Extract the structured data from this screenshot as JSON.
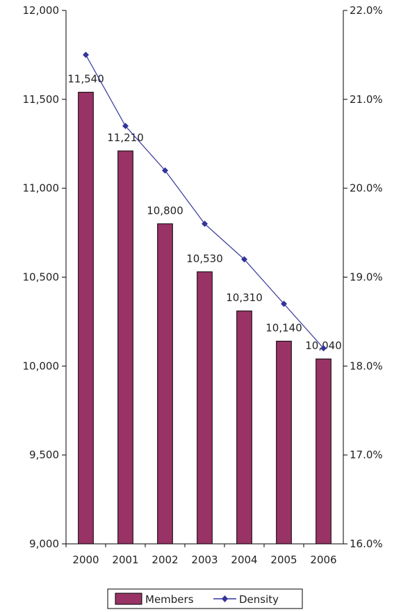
{
  "chart_data": {
    "type": "bar",
    "categories": [
      "2000",
      "2001",
      "2002",
      "2003",
      "2004",
      "2005",
      "2006"
    ],
    "series": [
      {
        "name": "Members",
        "type": "bar",
        "axis": "left",
        "color": "#993366",
        "values": [
          11540,
          11210,
          10800,
          10530,
          10310,
          10140,
          10040
        ],
        "labels": [
          "11,540",
          "11,210",
          "10,800",
          "10,530",
          "10,310",
          "10,140",
          "10,040"
        ]
      },
      {
        "name": "Density",
        "type": "line",
        "axis": "right",
        "color": "#333399",
        "marker": "diamond",
        "values": [
          21.5,
          20.7,
          20.2,
          19.6,
          19.2,
          18.7,
          18.2
        ]
      }
    ],
    "y_left": {
      "ylim": [
        9000,
        12000
      ],
      "ticks": [
        9000,
        9500,
        10000,
        10500,
        11000,
        11500,
        12000
      ],
      "tick_labels": [
        "9,000",
        "9,500",
        "10,000",
        "10,500",
        "11,000",
        "11,500",
        "12,000"
      ]
    },
    "y_right": {
      "ylim": [
        16.0,
        22.0
      ],
      "ticks": [
        16,
        17,
        18,
        19,
        20,
        21,
        22
      ],
      "tick_labels": [
        "16.0%",
        "17.0%",
        "18.0%",
        "19.0%",
        "20.0%",
        "21.0%",
        "22.0%"
      ]
    },
    "grid": false,
    "legend": {
      "position": "bottom",
      "entries": [
        "Members",
        "Density"
      ]
    }
  }
}
